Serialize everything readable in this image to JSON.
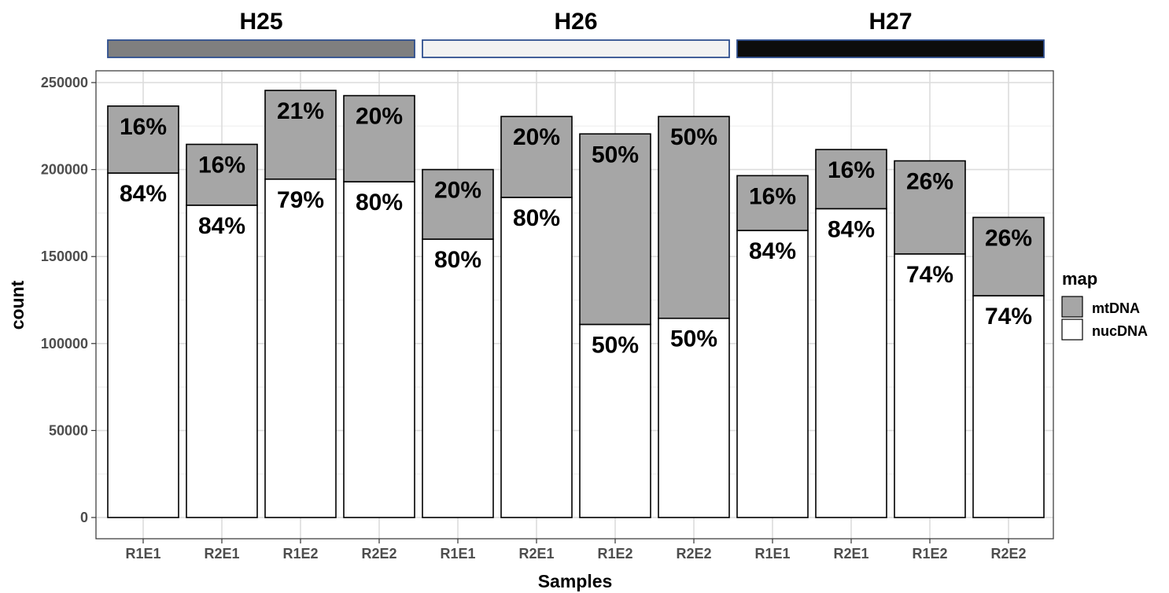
{
  "chart_data": {
    "type": "bar",
    "stacked": true,
    "xlabel": "Samples",
    "ylabel": "count",
    "ylim": [
      0,
      260000
    ],
    "yticks": [
      0,
      50000,
      100000,
      150000,
      200000,
      250000
    ],
    "ytick_labels": [
      "0",
      "50000",
      "100000",
      "150000",
      "200000",
      "250000"
    ],
    "grid": true,
    "legend": {
      "title": "map",
      "placement": "right",
      "entries": [
        {
          "name": "mtDNA",
          "color": "#a6a6a6"
        },
        {
          "name": "nucDNA",
          "color": "#ffffff"
        }
      ]
    },
    "panels": [
      {
        "title": "H25",
        "strip_color": "#7f7f7f",
        "categories": [
          "R1E1",
          "R2E1",
          "R1E2",
          "R2E2"
        ],
        "series": [
          {
            "name": "nucDNA",
            "values": [
              198000,
              179500,
              194500,
              193000
            ],
            "labels": [
              "84%",
              "84%",
              "79%",
              "80%"
            ]
          },
          {
            "name": "mtDNA",
            "values": [
              38500,
              35000,
              51000,
              49500
            ],
            "labels": [
              "16%",
              "16%",
              "21%",
              "20%"
            ]
          }
        ]
      },
      {
        "title": "H26",
        "strip_color": "#f2f2f2",
        "categories": [
          "R1E1",
          "R2E1",
          "R1E2",
          "R2E2"
        ],
        "series": [
          {
            "name": "nucDNA",
            "values": [
              160000,
              184000,
              111000,
              114500
            ],
            "labels": [
              "80%",
              "80%",
              "50%",
              "50%"
            ]
          },
          {
            "name": "mtDNA",
            "values": [
              40000,
              46500,
              109500,
              116000
            ],
            "labels": [
              "20%",
              "20%",
              "50%",
              "50%"
            ]
          }
        ]
      },
      {
        "title": "H27",
        "strip_color": "#0d0d0d",
        "categories": [
          "R1E1",
          "R2E1",
          "R1E2",
          "R2E2"
        ],
        "series": [
          {
            "name": "nucDNA",
            "values": [
              165000,
              177500,
              151500,
              127500
            ],
            "labels": [
              "84%",
              "84%",
              "74%",
              "74%"
            ]
          },
          {
            "name": "mtDNA",
            "values": [
              31500,
              34000,
              53500,
              45000
            ],
            "labels": [
              "16%",
              "16%",
              "26%",
              "26%"
            ]
          }
        ]
      }
    ]
  }
}
